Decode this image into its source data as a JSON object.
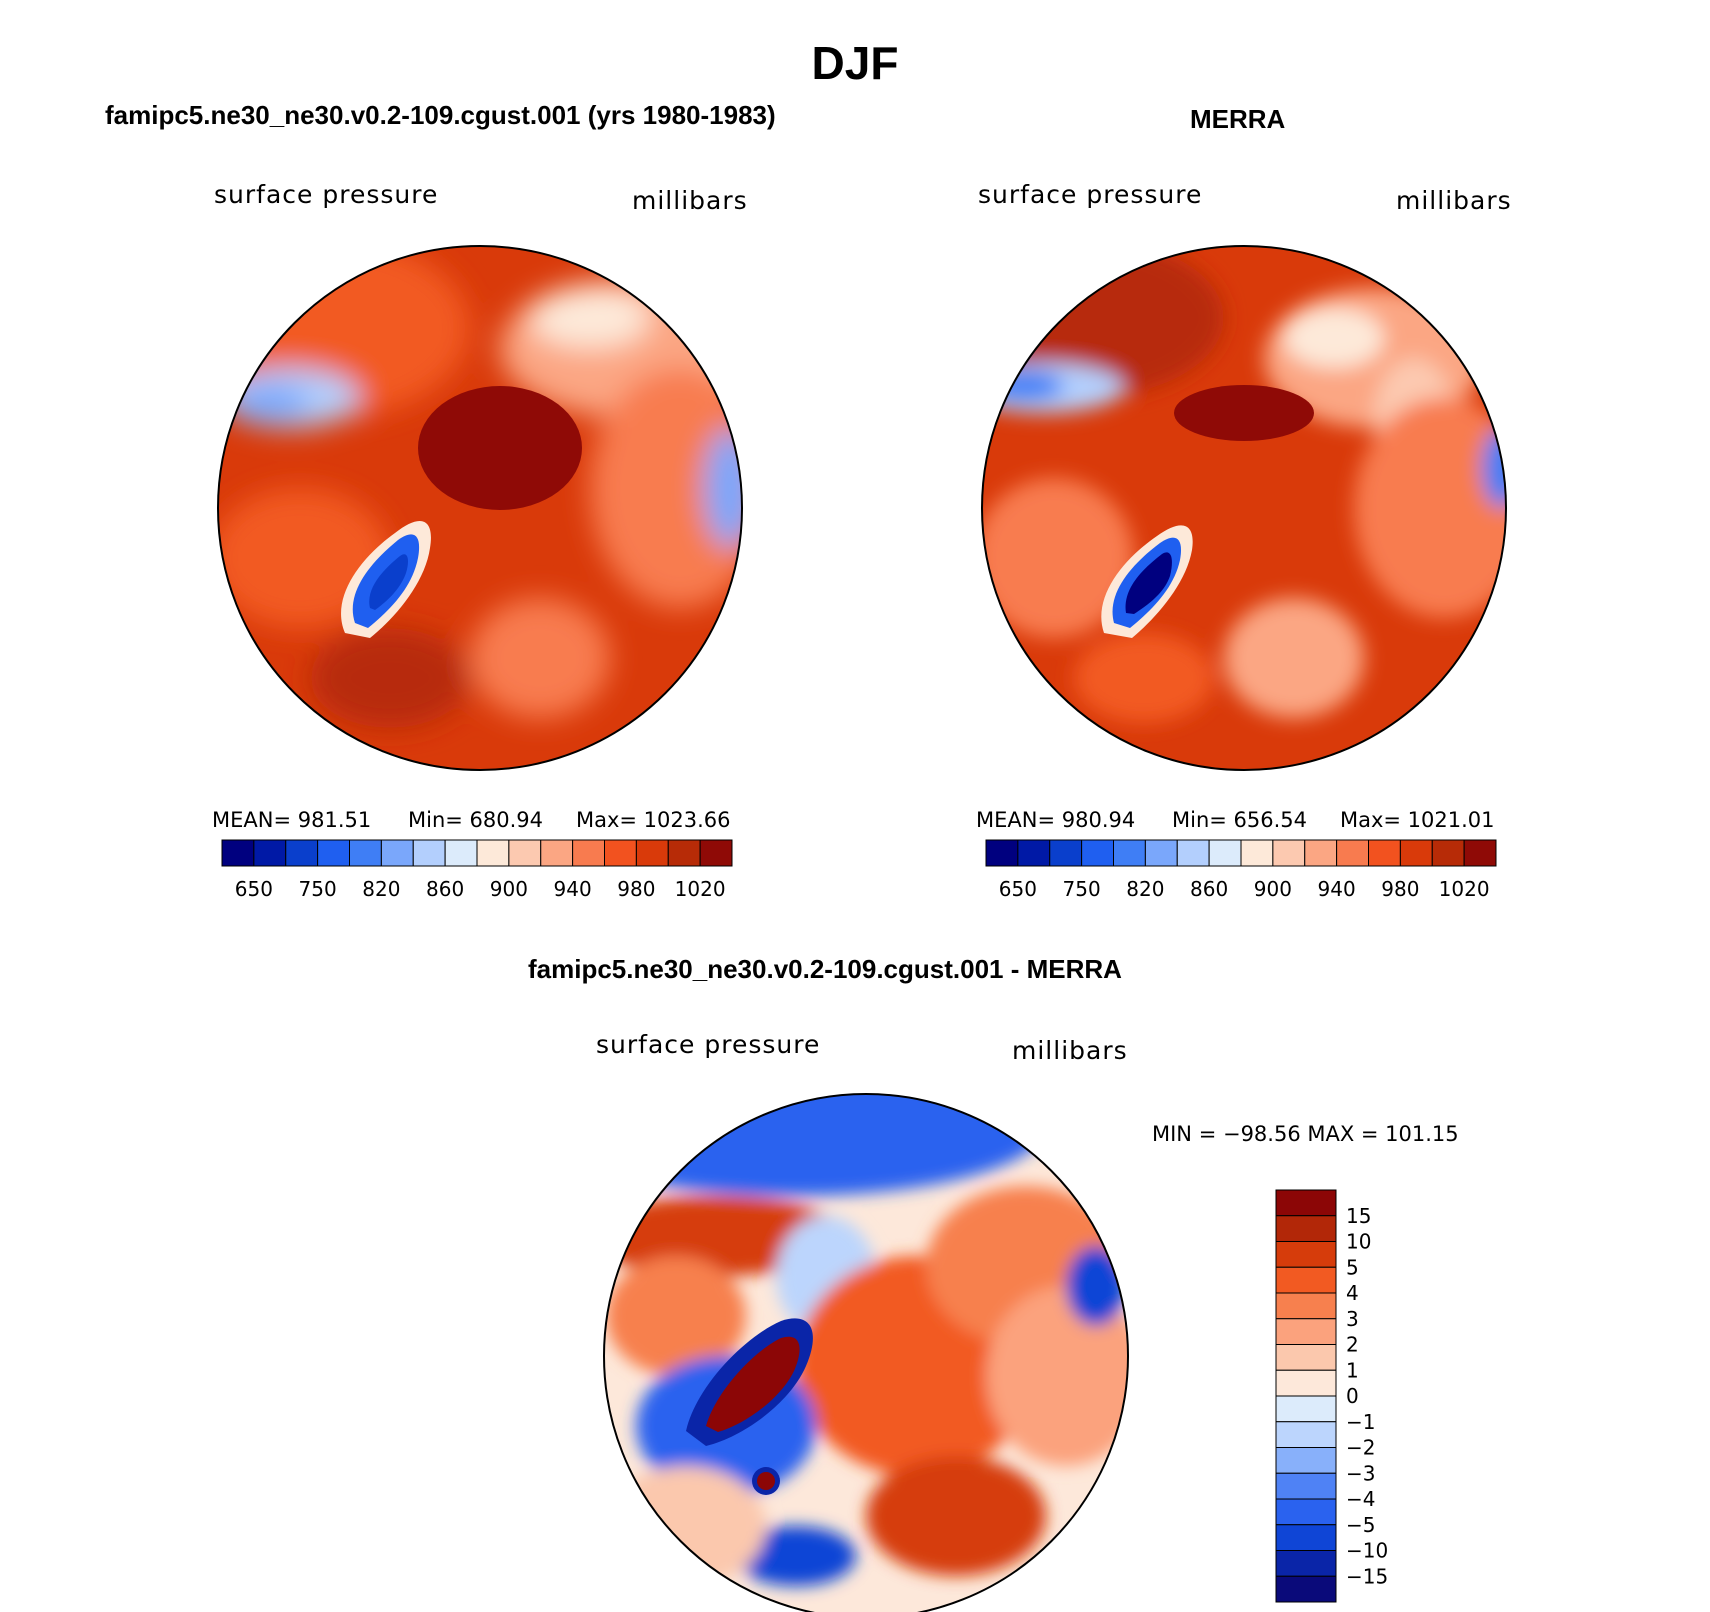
{
  "title": "DJF",
  "colors": {
    "seq": [
      "#00007f",
      "#0019a6",
      "#0a3fcc",
      "#1f5ff0",
      "#3f7ef5",
      "#7aa7fb",
      "#b3cffd",
      "#dcebfb",
      "#fde9d9",
      "#fcc9b0",
      "#fba683",
      "#f87b4f",
      "#f2521f",
      "#d93a0a",
      "#b72b07",
      "#8f0a06"
    ],
    "diff": [
      "#0a0a7a",
      "#0a25a8",
      "#0f45d6",
      "#2a62ef",
      "#4f82f5",
      "#88b0fa",
      "#bcd5fd",
      "#dcebfb",
      "#fde8da",
      "#fbc8ad",
      "#fba27d",
      "#f7804e",
      "#f25a22",
      "#d63c0b",
      "#b22708",
      "#8c0606"
    ]
  },
  "panels": [
    {
      "title": "famipc5.ne30_ne30.v0.2-109.cgust.001 (yrs 1980-1983)",
      "left_label": "surface pressure",
      "right_label": "millibars",
      "stats": {
        "mean": "MEAN=  981.51",
        "min": "Min=  680.94",
        "max": "Max=  1023.66"
      },
      "colorbar_ticks": [
        "650",
        "750",
        "820",
        "860",
        "900",
        "940",
        "980",
        "1020"
      ]
    },
    {
      "title": "MERRA",
      "left_label": "surface pressure",
      "right_label": "millibars",
      "stats": {
        "mean": "MEAN=  980.94",
        "min": "Min=  656.54",
        "max": "Max=  1021.01"
      },
      "colorbar_ticks": [
        "650",
        "750",
        "820",
        "860",
        "900",
        "940",
        "980",
        "1020"
      ]
    }
  ],
  "diff_panel": {
    "title": "famipc5.ne30_ne30.v0.2-109.cgust.001 - MERRA",
    "left_label": "surface pressure",
    "right_label": "millibars",
    "minmax": "MIN = −98.56 MAX = 101.15",
    "colorbar_ticks": [
      "15",
      "10",
      "5",
      "4",
      "3",
      "2",
      "1",
      "0",
      "−1",
      "−2",
      "−3",
      "−4",
      "−5",
      "−10",
      "−15"
    ]
  }
}
